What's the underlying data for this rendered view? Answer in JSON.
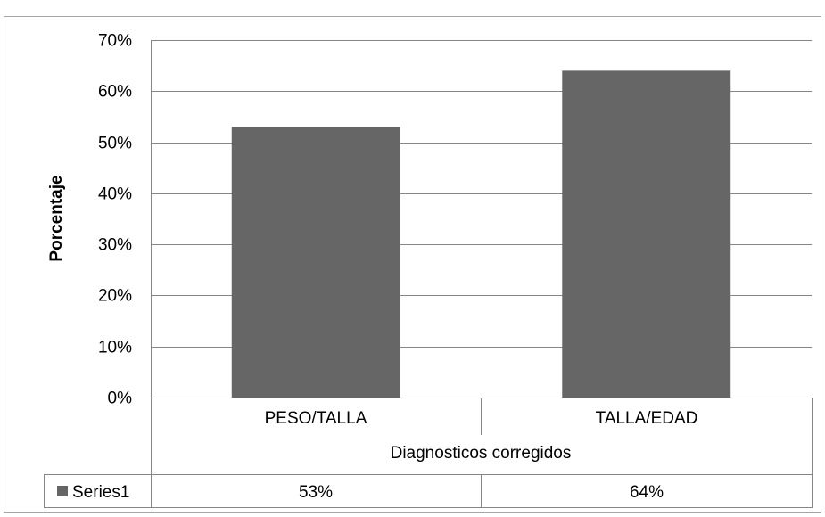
{
  "chart_data": {
    "type": "bar",
    "categories": [
      "PESO/TALLA",
      "TALLA/EDAD"
    ],
    "series": [
      {
        "name": "Series1",
        "values": [
          53,
          64
        ],
        "color": "#666666"
      }
    ],
    "value_labels": [
      "53%",
      "64%"
    ],
    "xlabel": "Diagnosticos corregidos",
    "ylabel": "Porcentaje",
    "yticks": [
      "0%",
      "10%",
      "20%",
      "30%",
      "40%",
      "50%",
      "60%",
      "70%"
    ],
    "ylim": [
      0,
      70
    ],
    "grid": true,
    "legend": "data-table-left",
    "data_table": true
  }
}
